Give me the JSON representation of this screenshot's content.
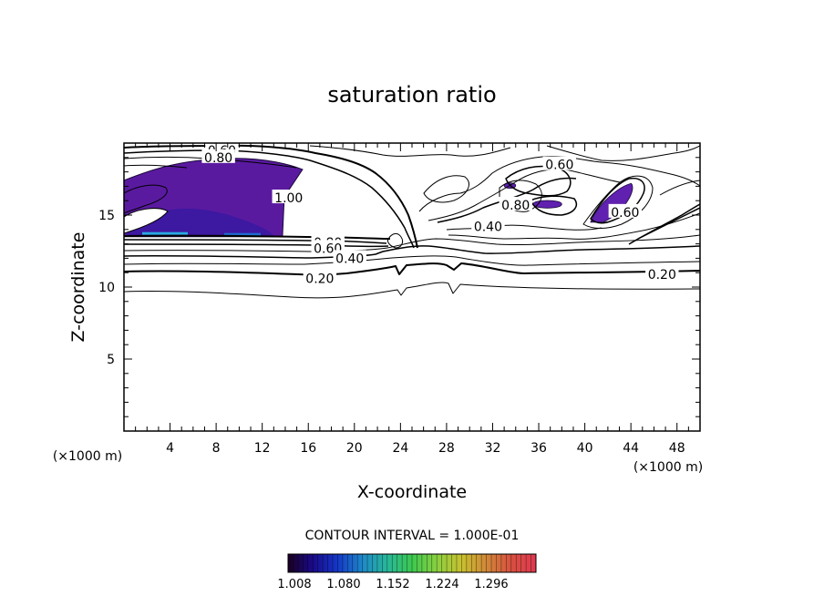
{
  "chart_data": {
    "type": "contour",
    "title": "saturation ratio",
    "xlabel": "X-coordinate",
    "ylabel": "Z-coordinate",
    "x_unit": "(×1000 m)",
    "y_unit": "(×1000 m)",
    "xlim": [
      0,
      50
    ],
    "ylim": [
      0,
      20
    ],
    "x_ticks": [
      4,
      8,
      12,
      16,
      20,
      24,
      28,
      32,
      36,
      40,
      44,
      48
    ],
    "y_ticks": [
      5,
      10,
      15
    ],
    "contour_interval_text": "CONTOUR INTERVAL = 1.000E-01",
    "contour_labels": [
      {
        "text": "0.60",
        "x": 8.5,
        "z": 19.5
      },
      {
        "text": "0.80",
        "x": 8.2,
        "z": 19.0
      },
      {
        "text": "1.00",
        "x": 14.3,
        "z": 16.2
      },
      {
        "text": "0.80",
        "x": 17.7,
        "z": 13.1
      },
      {
        "text": "0.60",
        "x": 17.7,
        "z": 12.7
      },
      {
        "text": "0.40",
        "x": 19.6,
        "z": 12.0
      },
      {
        "text": "0.20",
        "x": 17.0,
        "z": 10.6
      },
      {
        "text": "0.40",
        "x": 31.6,
        "z": 14.2
      },
      {
        "text": "0.80",
        "x": 34.0,
        "z": 15.7
      },
      {
        "text": "0.60",
        "x": 37.8,
        "z": 18.5
      },
      {
        "text": "0.60",
        "x": 43.5,
        "z": 15.2
      },
      {
        "text": "0.20",
        "x": 46.7,
        "z": 10.9
      }
    ],
    "fill_range": [
      1.0,
      1.3
    ],
    "filled_regions": [
      {
        "x": [
          0,
          15.5
        ],
        "z": [
          13.5,
          18.8
        ],
        "value": 1.02
      },
      {
        "x": [
          33,
          34
        ],
        "z": [
          16.8,
          17.3
        ],
        "value": 1.01
      },
      {
        "x": [
          35.5,
          38
        ],
        "z": [
          15.4,
          16.1
        ],
        "value": 1.01
      },
      {
        "x": [
          40.5,
          44.5
        ],
        "z": [
          14.5,
          17.2
        ],
        "value": 1.01
      }
    ],
    "colorbar": {
      "ticks": [
        "1.008",
        "1.080",
        "1.152",
        "1.224",
        "1.296"
      ],
      "colors": [
        "#1a0022",
        "#1a0a8a",
        "#1438c8",
        "#1e88c8",
        "#28b89a",
        "#3cc850",
        "#8ad040",
        "#c8c030",
        "#d08838",
        "#d85040",
        "#e03850"
      ]
    }
  }
}
